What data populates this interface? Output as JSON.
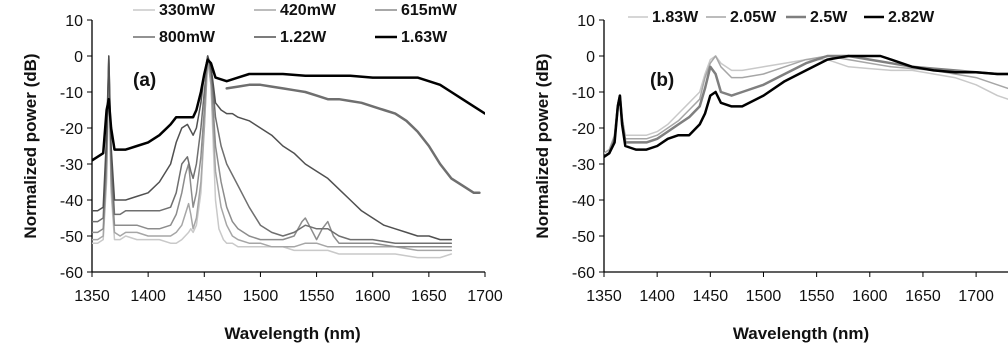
{
  "chart_data": [
    {
      "type": "line",
      "panel_label": "(a)",
      "xlabel": "Wavelength (nm)",
      "ylabel": "Normalized power (dB)",
      "xlim": [
        1350,
        1700
      ],
      "ylim": [
        -60,
        10
      ],
      "x_ticks": [
        1350,
        1400,
        1450,
        1500,
        1550,
        1600,
        1650,
        1700
      ],
      "y_ticks": [
        10,
        0,
        -10,
        -20,
        -30,
        -40,
        -50,
        -60
      ],
      "grid": false,
      "legend_position": "top",
      "series": [
        {
          "name": "330mW",
          "color": "#c9c9c9",
          "stroke_width": 1.5,
          "x": [
            1350,
            1355,
            1360,
            1363,
            1365,
            1367,
            1370,
            1375,
            1380,
            1390,
            1400,
            1410,
            1420,
            1425,
            1430,
            1433,
            1436,
            1438,
            1440,
            1443,
            1447,
            1450,
            1453,
            1456,
            1458,
            1460,
            1463,
            1467,
            1470,
            1475,
            1480,
            1490,
            1500,
            1510,
            1520,
            1530,
            1540,
            1550,
            1560,
            1570,
            1580,
            1600,
            1620,
            1640,
            1660,
            1670
          ],
          "y": [
            -52,
            -52,
            -51,
            -35,
            -3,
            -38,
            -51,
            -51,
            -50,
            -51,
            -51,
            -51,
            -52,
            -52,
            -51,
            -50,
            -49,
            -48,
            -49,
            -47,
            -38,
            -20,
            0,
            -8,
            -25,
            -40,
            -48,
            -51,
            -52,
            -52,
            -53,
            -53,
            -53,
            -53,
            -53,
            -54,
            -54,
            -54,
            -54,
            -55,
            -55,
            -55,
            -55,
            -56,
            -56,
            -55
          ]
        },
        {
          "name": "420mW",
          "color": "#a6a6a6",
          "stroke_width": 1.5,
          "x": [
            1350,
            1355,
            1360,
            1363,
            1365,
            1367,
            1370,
            1375,
            1380,
            1390,
            1400,
            1410,
            1420,
            1425,
            1430,
            1433,
            1436,
            1438,
            1440,
            1443,
            1447,
            1450,
            1453,
            1456,
            1458,
            1460,
            1465,
            1470,
            1475,
            1480,
            1490,
            1500,
            1510,
            1520,
            1530,
            1540,
            1550,
            1560,
            1570,
            1580,
            1600,
            1620,
            1640,
            1660,
            1670
          ],
          "y": [
            -51,
            -51,
            -50,
            -33,
            -2,
            -36,
            -49,
            -50,
            -49,
            -49,
            -50,
            -50,
            -50,
            -49,
            -47,
            -44,
            -41,
            -44,
            -48,
            -45,
            -35,
            -20,
            -1,
            -8,
            -20,
            -32,
            -42,
            -47,
            -50,
            -51,
            -52,
            -52,
            -53,
            -53,
            -53,
            -52,
            -52,
            -53,
            -53,
            -53,
            -53,
            -53,
            -54,
            -54,
            -54
          ]
        },
        {
          "name": "615mW",
          "color": "#8c8c8c",
          "stroke_width": 1.5,
          "x": [
            1350,
            1355,
            1360,
            1363,
            1365,
            1367,
            1370,
            1375,
            1380,
            1390,
            1400,
            1410,
            1420,
            1425,
            1430,
            1433,
            1436,
            1438,
            1440,
            1443,
            1447,
            1450,
            1453,
            1456,
            1458,
            1460,
            1465,
            1470,
            1475,
            1480,
            1490,
            1500,
            1510,
            1520,
            1530,
            1537,
            1540,
            1545,
            1550,
            1555,
            1560,
            1565,
            1570,
            1580,
            1600,
            1620,
            1640,
            1660,
            1670
          ],
          "y": [
            -49,
            -49,
            -48,
            -30,
            -1,
            -33,
            -47,
            -47,
            -47,
            -47,
            -48,
            -48,
            -47,
            -44,
            -38,
            -33,
            -30,
            -36,
            -42,
            -38,
            -28,
            -15,
            0,
            -5,
            -15,
            -25,
            -35,
            -42,
            -46,
            -48,
            -50,
            -51,
            -51,
            -51,
            -50,
            -46,
            -45,
            -48,
            -51,
            -48,
            -46,
            -50,
            -52,
            -52,
            -52,
            -53,
            -53,
            -53,
            -53
          ]
        },
        {
          "name": "800mW",
          "color": "#6f6f6f",
          "stroke_width": 1.5,
          "x": [
            1350,
            1355,
            1360,
            1363,
            1365,
            1367,
            1370,
            1375,
            1380,
            1390,
            1400,
            1410,
            1420,
            1425,
            1430,
            1435,
            1438,
            1440,
            1443,
            1447,
            1450,
            1453,
            1456,
            1458,
            1460,
            1465,
            1470,
            1480,
            1490,
            1500,
            1510,
            1520,
            1530,
            1540,
            1550,
            1560,
            1570,
            1580,
            1600,
            1620,
            1640,
            1660,
            1670
          ],
          "y": [
            -46,
            -46,
            -45,
            -25,
            0,
            -28,
            -44,
            -44,
            -43,
            -43,
            -43,
            -43,
            -42,
            -38,
            -30,
            -28,
            -32,
            -34,
            -30,
            -20,
            -10,
            0,
            -4,
            -10,
            -17,
            -25,
            -30,
            -36,
            -42,
            -47,
            -49,
            -50,
            -49,
            -47,
            -48,
            -48,
            -50,
            -51,
            -51,
            -52,
            -52,
            -52,
            -52
          ]
        },
        {
          "name": "1.22W",
          "color": "#505050",
          "stroke_width": 1.5,
          "x": [
            1350,
            1355,
            1360,
            1363,
            1365,
            1367,
            1370,
            1375,
            1380,
            1390,
            1400,
            1410,
            1420,
            1425,
            1430,
            1435,
            1440,
            1443,
            1447,
            1450,
            1453,
            1456,
            1458,
            1460,
            1465,
            1470,
            1475,
            1480,
            1490,
            1500,
            1510,
            1520,
            1530,
            1540,
            1550,
            1560,
            1570,
            1580,
            1590,
            1600,
            1610,
            1620,
            1630,
            1640,
            1650,
            1660,
            1670
          ],
          "y": [
            -43,
            -43,
            -42,
            -22,
            0,
            -25,
            -40,
            -40,
            -40,
            -39,
            -38,
            -35,
            -30,
            -24,
            -20,
            -19,
            -22,
            -20,
            -13,
            -5,
            0,
            -3,
            -8,
            -13,
            -15,
            -16,
            -16,
            -17,
            -18,
            -20,
            -22,
            -25,
            -27,
            -30,
            -32,
            -34,
            -37,
            -40,
            -43,
            -45,
            -47,
            -48,
            -49,
            -50,
            -50,
            -51,
            -51
          ]
        },
        {
          "name": "1.63W",
          "color": "#000000",
          "stroke_width": 2.5,
          "x": [
            1350,
            1355,
            1360,
            1363,
            1365,
            1367,
            1370,
            1375,
            1380,
            1390,
            1400,
            1410,
            1420,
            1425,
            1430,
            1435,
            1440,
            1443,
            1447,
            1450,
            1453,
            1456,
            1460,
            1470,
            1480,
            1490,
            1500,
            1520,
            1540,
            1560,
            1580,
            1600,
            1620,
            1640,
            1650,
            1660,
            1670,
            1680,
            1690,
            1700
          ],
          "y": [
            -29,
            -28,
            -27,
            -15,
            -12,
            -20,
            -26,
            -26,
            -26,
            -25,
            -24,
            -22,
            -19,
            -17,
            -17,
            -17,
            -17,
            -15,
            -10,
            -5,
            -1,
            -2,
            -6,
            -7,
            -6,
            -5,
            -5,
            -5,
            -5.5,
            -5.5,
            -5.5,
            -6,
            -6,
            -6,
            -7,
            -8,
            -10,
            -12,
            -14,
            -16
          ]
        },
        {
          "name": "",
          "color": "#6f6f6f",
          "stroke_width": 2.5,
          "x": [
            1470,
            1480,
            1490,
            1500,
            1510,
            1520,
            1530,
            1540,
            1550,
            1560,
            1570,
            1580,
            1590,
            1600,
            1610,
            1620,
            1630,
            1640,
            1650,
            1660,
            1670,
            1680,
            1690,
            1695
          ],
          "y": [
            -9,
            -8.5,
            -8,
            -8,
            -8.5,
            -9,
            -9.5,
            -10,
            -11,
            -12,
            -12,
            -12.5,
            -13,
            -14,
            -15,
            -16,
            -18,
            -21,
            -25,
            -30,
            -34,
            -36,
            -38,
            -38
          ]
        }
      ]
    },
    {
      "type": "line",
      "panel_label": "(b)",
      "xlabel": "Wavelength (nm)",
      "ylabel": "Normalized power (dB)",
      "xlim": [
        1350,
        1730
      ],
      "ylim": [
        -60,
        10
      ],
      "x_ticks": [
        1350,
        1400,
        1450,
        1500,
        1550,
        1600,
        1650,
        1700
      ],
      "y_ticks": [
        10,
        0,
        -10,
        -20,
        -30,
        -40,
        -50,
        -60
      ],
      "grid": false,
      "legend_position": "top",
      "series": [
        {
          "name": "1.83W",
          "color": "#c9c9c9",
          "stroke_width": 1.5,
          "x": [
            1350,
            1355,
            1360,
            1363,
            1365,
            1367,
            1370,
            1380,
            1390,
            1400,
            1410,
            1420,
            1430,
            1440,
            1445,
            1450,
            1455,
            1460,
            1470,
            1480,
            1500,
            1520,
            1540,
            1560,
            1580,
            1600,
            1620,
            1640,
            1660,
            1680,
            1700,
            1720,
            1730
          ],
          "y": [
            -27,
            -26,
            -22,
            -13,
            -11,
            -17,
            -22,
            -22,
            -22,
            -21,
            -19,
            -16,
            -13,
            -10,
            -5,
            -1,
            0,
            -2,
            -4,
            -4,
            -3,
            -2,
            -1,
            -1,
            -3,
            -3.5,
            -4,
            -4,
            -5,
            -6,
            -8,
            -11,
            -12
          ]
        },
        {
          "name": "2.05W",
          "color": "#a6a6a6",
          "stroke_width": 1.5,
          "x": [
            1350,
            1355,
            1360,
            1363,
            1365,
            1367,
            1370,
            1380,
            1390,
            1400,
            1410,
            1420,
            1430,
            1440,
            1445,
            1450,
            1455,
            1460,
            1470,
            1480,
            1500,
            1520,
            1540,
            1560,
            1580,
            1600,
            1620,
            1640,
            1660,
            1680,
            1700,
            1720,
            1730
          ],
          "y": [
            -27,
            -26,
            -22,
            -13,
            -11,
            -17,
            -23,
            -23,
            -23,
            -22,
            -20,
            -18,
            -15,
            -12,
            -6,
            -2,
            0,
            -3,
            -6,
            -6,
            -5,
            -3,
            -1,
            0,
            -1,
            -2,
            -3,
            -3.5,
            -4,
            -5,
            -6,
            -8,
            -9
          ]
        },
        {
          "name": "2.5W",
          "color": "#7f7f7f",
          "stroke_width": 2.5,
          "x": [
            1350,
            1355,
            1360,
            1363,
            1365,
            1367,
            1370,
            1380,
            1390,
            1400,
            1410,
            1420,
            1430,
            1440,
            1445,
            1450,
            1455,
            1460,
            1470,
            1480,
            1500,
            1520,
            1540,
            1560,
            1580,
            1600,
            1620,
            1640,
            1660,
            1680,
            1700,
            1720,
            1730
          ],
          "y": [
            -28,
            -27,
            -23,
            -14,
            -11,
            -18,
            -24,
            -24,
            -24,
            -23,
            -21,
            -19,
            -17,
            -14,
            -9,
            -3,
            -5,
            -10,
            -11,
            -10,
            -8,
            -5,
            -2,
            0,
            0,
            -1,
            -2,
            -3,
            -3.5,
            -4,
            -4.5,
            -5,
            -5
          ]
        },
        {
          "name": "2.82W",
          "color": "#000000",
          "stroke_width": 2.5,
          "x": [
            1350,
            1355,
            1360,
            1363,
            1365,
            1367,
            1370,
            1380,
            1390,
            1400,
            1410,
            1420,
            1430,
            1440,
            1445,
            1450,
            1455,
            1460,
            1470,
            1480,
            1500,
            1520,
            1540,
            1560,
            1570,
            1580,
            1590,
            1600,
            1610,
            1620,
            1640,
            1660,
            1680,
            1700,
            1720,
            1730
          ],
          "y": [
            -28,
            -27,
            -24,
            -14,
            -11,
            -19,
            -25,
            -26,
            -26,
            -25,
            -23,
            -22,
            -22,
            -19,
            -16,
            -11,
            -10,
            -13,
            -14,
            -14,
            -11,
            -7,
            -4,
            -1,
            -0.5,
            0,
            0,
            0,
            0,
            -1,
            -3,
            -4,
            -4.5,
            -4.5,
            -5,
            -5
          ]
        }
      ]
    }
  ]
}
